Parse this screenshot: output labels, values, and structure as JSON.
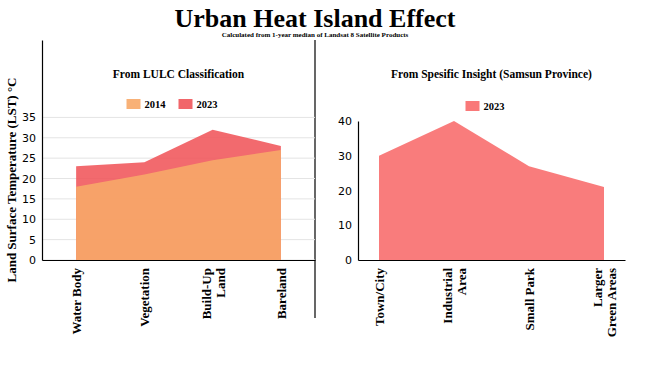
{
  "title": "Urban Heat Island Effect",
  "subtitle": "Calculated from 1-year median of Landsat 8 Satellite Products",
  "chart_data": [
    {
      "type": "area",
      "title": "From LULC Classification",
      "y_label": "Land Surface Temperature (LST) °C",
      "categories": [
        "Water Body",
        "Vegetation",
        "Build-Up\nLand",
        "Bareland"
      ],
      "series": [
        {
          "name": "2014",
          "color": "#f7a868",
          "values": [
            18,
            21,
            24.5,
            27
          ]
        },
        {
          "name": "2023",
          "color": "#f0555a",
          "values": [
            23,
            24,
            32,
            28
          ]
        }
      ],
      "ylim": [
        0,
        54
      ],
      "yticks": [
        0,
        5,
        10,
        15,
        20,
        25,
        30,
        35
      ],
      "grid": true,
      "legend": "top"
    },
    {
      "type": "area",
      "title": "From Spesific Insight (Samsun Province)",
      "categories": [
        "Town/City",
        "Industrial\nArea",
        "Small Park",
        "Larger\nGreen Areas"
      ],
      "series": [
        {
          "name": "2023",
          "color": "#f86a6a",
          "values": [
            30,
            40,
            27,
            21
          ]
        }
      ],
      "ylim": [
        0,
        40
      ],
      "yticks": [
        0,
        10,
        20,
        30,
        40
      ],
      "grid": false,
      "legend": "top"
    }
  ]
}
